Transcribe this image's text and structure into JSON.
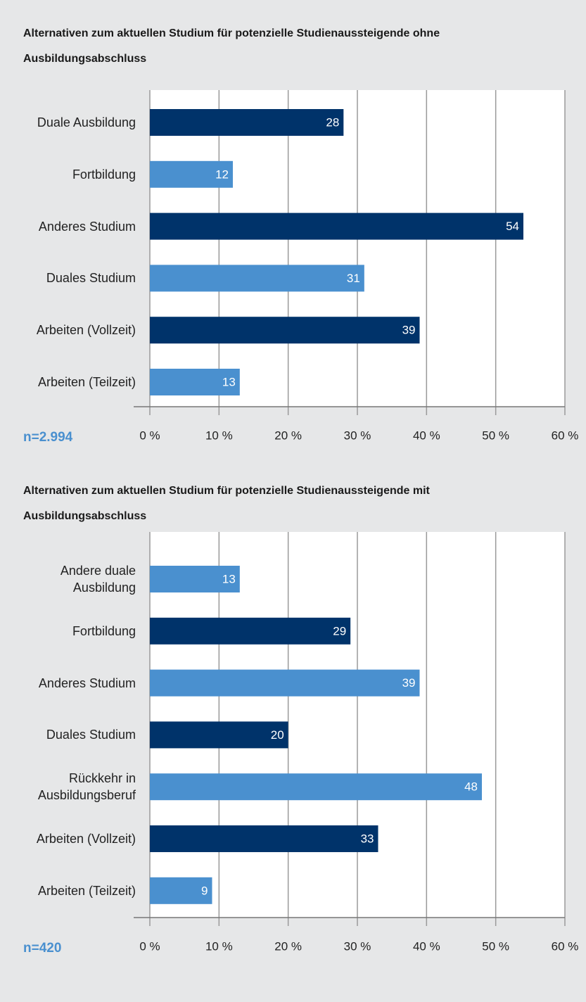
{
  "chart_data": [
    {
      "type": "barh",
      "title": "Alternativen zum aktuellen Studium für potenzielle Studienaussteigende ohne Ausbildungsabschluss",
      "annotation": "n=2.994",
      "categories": [
        "Duale Ausbildung",
        "Fortbildung",
        "Anderes Studium",
        "Duales Studium",
        "Arbeiten (Vollzeit)",
        "Arbeiten (Teilzeit)"
      ],
      "values": [
        28,
        12,
        54,
        31,
        39,
        13
      ],
      "colors": [
        "#00336a",
        "#4a90cf",
        "#00336a",
        "#4a90cf",
        "#00336a",
        "#4a90cf"
      ],
      "xlim": [
        0,
        60
      ],
      "xticks": [
        {
          "value": 0,
          "label": "0 %"
        },
        {
          "value": 10,
          "label": "10 %"
        },
        {
          "value": 20,
          "label": "20 %"
        },
        {
          "value": 30,
          "label": "30 %"
        },
        {
          "value": 40,
          "label": "40 %"
        },
        {
          "value": 50,
          "label": "50 %"
        },
        {
          "value": 60,
          "label": "60 %"
        }
      ],
      "grid": true
    },
    {
      "type": "barh",
      "title": "Alternativen zum aktuellen Studium für potenzielle Studienaussteigende mit Ausbildungsabschluss",
      "annotation": "n=420",
      "categories": [
        "Andere duale Ausbildung",
        "Fortbildung",
        "Anderes Studium",
        "Duales Studium",
        "Rückkehr in Ausbildungsberuf",
        "Arbeiten (Vollzeit)",
        "Arbeiten (Teilzeit)"
      ],
      "values": [
        13,
        29,
        39,
        20,
        48,
        33,
        9
      ],
      "colors": [
        "#4a90cf",
        "#00336a",
        "#4a90cf",
        "#00336a",
        "#4a90cf",
        "#00336a",
        "#4a90cf"
      ],
      "xlim": [
        0,
        60
      ],
      "xticks": [
        {
          "value": 0,
          "label": "0 %"
        },
        {
          "value": 10,
          "label": "10 %"
        },
        {
          "value": 20,
          "label": "20 %"
        },
        {
          "value": 30,
          "label": "30 %"
        },
        {
          "value": 40,
          "label": "40 %"
        },
        {
          "value": 50,
          "label": "50 %"
        },
        {
          "value": 60,
          "label": "60 %"
        }
      ],
      "grid": true
    }
  ]
}
